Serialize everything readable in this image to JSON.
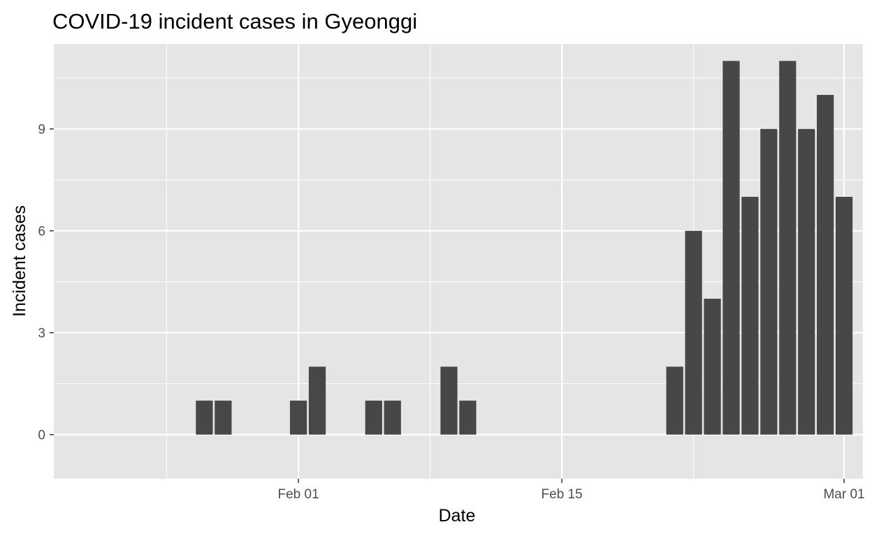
{
  "chart_data": {
    "type": "bar",
    "title": "COVID-19 incident cases in Gyeonggi",
    "xlabel": "Date",
    "ylabel": "Incident cases",
    "x": [
      "Jan 20",
      "Jan 21",
      "Jan 22",
      "Jan 23",
      "Jan 24",
      "Jan 25",
      "Jan 26",
      "Jan 27",
      "Jan 28",
      "Jan 29",
      "Jan 30",
      "Jan 31",
      "Feb 01",
      "Feb 02",
      "Feb 03",
      "Feb 04",
      "Feb 05",
      "Feb 06",
      "Feb 07",
      "Feb 08",
      "Feb 09",
      "Feb 10",
      "Feb 11",
      "Feb 12",
      "Feb 13",
      "Feb 14",
      "Feb 15",
      "Feb 16",
      "Feb 17",
      "Feb 18",
      "Feb 19",
      "Feb 20",
      "Feb 21",
      "Feb 22",
      "Feb 23",
      "Feb 24",
      "Feb 25",
      "Feb 26",
      "Feb 27",
      "Feb 28",
      "Feb 29",
      "Mar 01"
    ],
    "values": [
      0,
      0,
      0,
      0,
      0,
      0,
      0,
      1,
      1,
      0,
      0,
      0,
      1,
      2,
      0,
      0,
      1,
      1,
      0,
      0,
      2,
      1,
      0,
      0,
      0,
      0,
      0,
      0,
      0,
      0,
      0,
      0,
      2,
      6,
      4,
      11,
      7,
      9,
      11,
      9,
      10,
      7
    ],
    "xlim": [
      "Jan 19",
      "Mar 02"
    ],
    "ylim": [
      -1.3,
      11.5
    ],
    "x_ticks": [
      {
        "date": "Feb 01",
        "label": "Feb 01"
      },
      {
        "date": "Feb 15",
        "label": "Feb 15"
      },
      {
        "date": "Mar 01",
        "label": "Mar 01"
      }
    ],
    "x_minor_ticks": [
      "Jan 18",
      "Jan 25",
      "Feb 08",
      "Feb 22"
    ],
    "y_ticks": [
      0,
      3,
      6,
      9
    ],
    "grid": true,
    "legend": "none",
    "colors": {
      "panel": "#e5e5e5",
      "bar": "#474747",
      "grid": "#ffffff",
      "tick_text": "#4d4d4d",
      "tick_mark": "#333333"
    }
  }
}
